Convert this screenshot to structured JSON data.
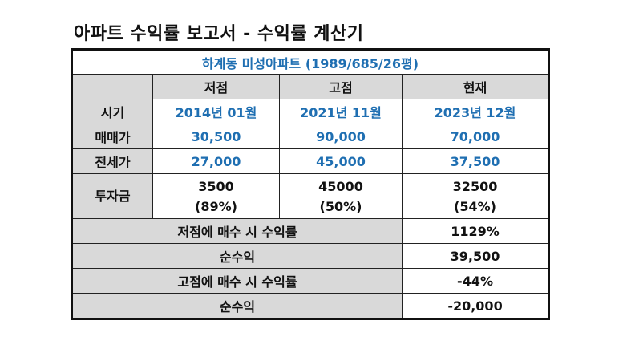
{
  "title": "아파트 수익률 보고서 - 수익률 계산기",
  "subtitle": "하계동 미성아파트 (1989/685/26평)",
  "columns": [
    "저점",
    "고점",
    "현재"
  ],
  "rows": [
    {
      "label": "시기",
      "values": [
        "2014년 01월",
        "2021년 11월",
        "2023년 12월"
      ]
    },
    {
      "label": "매매가",
      "values": [
        "30,500",
        "90,000",
        "70,000"
      ]
    },
    {
      "label": "전세가",
      "values": [
        "27,000",
        "45,000",
        "37,500"
      ]
    }
  ],
  "investment": {
    "label": "투자금",
    "values": [
      "3500",
      "45000",
      "32500"
    ],
    "ratios": [
      "(89%)",
      "(50%)",
      "(54%)"
    ]
  },
  "summary": [
    {
      "label": "저점에 매수 시 수익률",
      "value": "1129%"
    },
    {
      "label": "순수익",
      "value": "39,500"
    },
    {
      "label": "고점에 매수 시 수익률",
      "value": "-44%"
    },
    {
      "label": "순수익",
      "value": "-20,000"
    }
  ]
}
